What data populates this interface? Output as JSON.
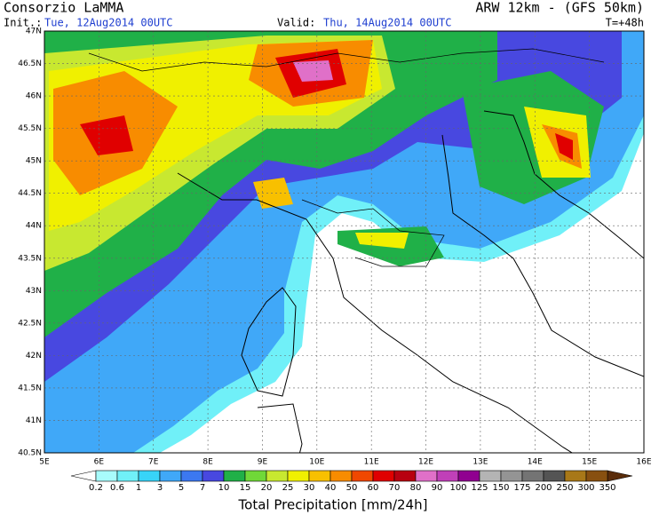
{
  "header": {
    "title": "Consorzio LaMMA",
    "model": "ARW 12km - (GFS 50km)",
    "init_label": "Init.:",
    "init": "Tue, 12Aug2014 00UTC",
    "valid_label": "Valid:",
    "valid": "Thu, 14Aug2014 00UTC",
    "lead": "T=+48h"
  },
  "map": {
    "yticks": [
      {
        "value": 40.5,
        "label": "40.5N"
      },
      {
        "value": 41,
        "label": "41N"
      },
      {
        "value": 41.5,
        "label": "41.5N"
      },
      {
        "value": 42,
        "label": "42N"
      },
      {
        "value": 42.5,
        "label": "42.5N"
      },
      {
        "value": 43,
        "label": "43N"
      },
      {
        "value": 43.5,
        "label": "43.5N"
      },
      {
        "value": 44,
        "label": "44N"
      },
      {
        "value": 44.5,
        "label": "44.5N"
      },
      {
        "value": 45,
        "label": "45N"
      },
      {
        "value": 45.5,
        "label": "45.5N"
      },
      {
        "value": 46,
        "label": "46N"
      },
      {
        "value": 46.5,
        "label": "46.5N"
      },
      {
        "value": 47,
        "label": "47N"
      }
    ],
    "xticks": [
      {
        "value": 5,
        "label": "5E"
      },
      {
        "value": 6,
        "label": "6E"
      },
      {
        "value": 7,
        "label": "7E"
      },
      {
        "value": 8,
        "label": "8E"
      },
      {
        "value": 9,
        "label": "9E"
      },
      {
        "value": 10,
        "label": "10E"
      },
      {
        "value": 11,
        "label": "11E"
      },
      {
        "value": 12,
        "label": "12E"
      },
      {
        "value": 13,
        "label": "13E"
      },
      {
        "value": 14,
        "label": "14E"
      },
      {
        "value": 15,
        "label": "15E"
      },
      {
        "value": 16,
        "label": "16E"
      }
    ],
    "xlim": [
      5,
      16
    ],
    "ylim": [
      40.5,
      47
    ]
  },
  "colorbar": {
    "title": "Total Precipitation [mm/24h]",
    "labels": [
      0.2,
      0.6,
      1,
      3,
      5,
      7,
      10,
      15,
      20,
      25,
      30,
      40,
      50,
      60,
      70,
      80,
      90,
      100,
      125,
      150,
      175,
      200,
      250,
      300,
      350
    ],
    "under_color": "#ffffff",
    "over_color": "#5a2c0a",
    "colors": [
      "#a8fcfc",
      "#70f0f8",
      "#38d4f8",
      "#40a8f8",
      "#3c78f0",
      "#4848e0",
      "#20b048",
      "#70d838",
      "#c8e830",
      "#f0f000",
      "#f8c000",
      "#f88c00",
      "#f04800",
      "#e00000",
      "#b80010",
      "#e070c8",
      "#c040b8",
      "#900090",
      "#b4b4b4",
      "#949494",
      "#747474",
      "#545454",
      "#a87818",
      "#885010"
    ]
  }
}
